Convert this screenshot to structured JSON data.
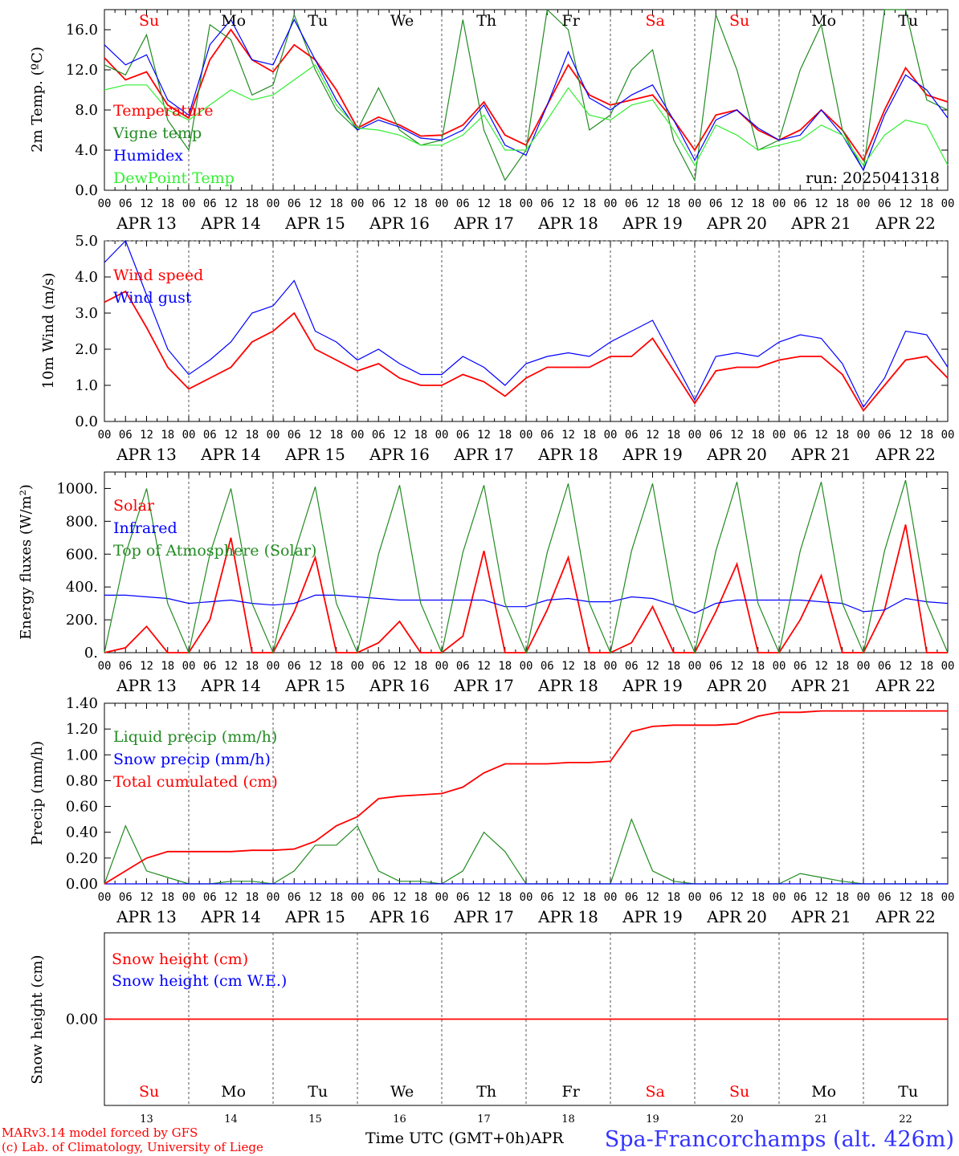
{
  "colors": {
    "red": "#ff0000",
    "green": "#228b22",
    "blue": "#0000ff",
    "lightgreen": "#33ee33",
    "axis": "#000000",
    "footer_blue": "#3333ff"
  },
  "days_top": [
    {
      "label": "Su",
      "color": "#ff0000"
    },
    {
      "label": "Mo",
      "color": "#000000"
    },
    {
      "label": "Tu",
      "color": "#000000"
    },
    {
      "label": "We",
      "color": "#000000"
    },
    {
      "label": "Th",
      "color": "#000000"
    },
    {
      "label": "Fr",
      "color": "#000000"
    },
    {
      "label": "Sa",
      "color": "#ff0000"
    },
    {
      "label": "Su",
      "color": "#ff0000"
    },
    {
      "label": "Mo",
      "color": "#000000"
    },
    {
      "label": "Tu",
      "color": "#000000"
    }
  ],
  "hour_ticks": [
    "00",
    "06",
    "12",
    "18"
  ],
  "hour_end": "00",
  "date_labels": [
    "APR 13",
    "APR 14",
    "APR 15",
    "APR 16",
    "APR 17",
    "APR 18",
    "APR 19",
    "APR 20",
    "APR 21",
    "APR 22"
  ],
  "bottom_day_numbers": [
    "13",
    "14",
    "15",
    "16",
    "17",
    "18",
    "19",
    "20",
    "21",
    "22"
  ],
  "run_label": "run: 2025041318",
  "x_title": "Time UTC (GMT+0h)APR",
  "footer_left_1": "MARv3.14 model forced by GFS",
  "footer_left_2": "(c) Lab. of Climatology, University of Liege",
  "station": "Spa-Francorchamps (alt. 426m)",
  "chart_data": [
    {
      "type": "line",
      "ylabel": "2m Temp. (ºC)",
      "ylim": [
        0,
        18
      ],
      "yticks": [
        "0.0",
        "4.0",
        "8.0",
        "12.0",
        "16.0"
      ],
      "ytick_values": [
        0,
        4,
        8,
        12,
        16
      ],
      "legend_placement": "left",
      "x_days": [
        0,
        0.25,
        0.5,
        0.75,
        1,
        1.25,
        1.5,
        1.75,
        2,
        2.25,
        2.5,
        2.75,
        3,
        3.25,
        3.5,
        3.75,
        4,
        4.25,
        4.5,
        4.75,
        5,
        5.25,
        5.5,
        5.75,
        6,
        6.25,
        6.5,
        6.75,
        7,
        7.25,
        7.5,
        7.75,
        8,
        8.25,
        8.5,
        8.75,
        9,
        9.25,
        9.5,
        9.75,
        10
      ],
      "series": [
        {
          "name": "Temperature",
          "color": "#ff0000",
          "values": [
            13.2,
            11.0,
            11.8,
            8.5,
            7.2,
            13.0,
            16.0,
            13.0,
            11.8,
            14.5,
            13.0,
            10.0,
            6.2,
            7.3,
            6.5,
            5.4,
            5.5,
            6.5,
            8.8,
            5.5,
            4.5,
            8.5,
            12.5,
            9.5,
            8.5,
            9.0,
            9.5,
            7.0,
            4.0,
            7.5,
            8.0,
            6.0,
            5.0,
            6.0,
            8.0,
            6.0,
            3.0,
            8.0,
            12.2,
            9.5,
            8.8
          ]
        },
        {
          "name": "Vigne temp",
          "color": "#228b22",
          "values": [
            12.5,
            11.5,
            15.5,
            7.0,
            4.0,
            16.5,
            15.0,
            9.5,
            10.5,
            17.5,
            12.0,
            8.0,
            6.0,
            10.2,
            6.0,
            4.5,
            5.0,
            17.0,
            6.0,
            1.0,
            4.0,
            18.0,
            16.0,
            6.0,
            7.5,
            12.0,
            14.0,
            5.0,
            1.0,
            17.5,
            12.0,
            4.0,
            5.0,
            12.0,
            16.5,
            6.0,
            2.0,
            18.0,
            18.0,
            9.0,
            8.0
          ]
        },
        {
          "name": "Humidex",
          "color": "#0000ff",
          "values": [
            14.5,
            12.5,
            13.5,
            9.0,
            7.5,
            14.5,
            17.0,
            13.0,
            12.5,
            17.0,
            13.0,
            9.0,
            6.0,
            7.0,
            6.3,
            5.2,
            5.0,
            6.0,
            8.5,
            4.5,
            3.5,
            8.5,
            13.8,
            9.2,
            8.0,
            9.5,
            10.5,
            7.0,
            3.0,
            7.0,
            8.0,
            6.2,
            5.0,
            5.5,
            8.0,
            5.5,
            2.0,
            7.5,
            11.5,
            10.0,
            7.2
          ]
        },
        {
          "name": "DewPoint Temp",
          "color": "#33ee33",
          "values": [
            10.0,
            10.5,
            10.5,
            8.0,
            7.0,
            8.5,
            10.0,
            9.0,
            9.5,
            11.0,
            12.5,
            8.5,
            6.2,
            6.0,
            5.5,
            4.5,
            4.5,
            5.5,
            7.5,
            4.0,
            4.0,
            7.0,
            10.2,
            7.5,
            7.0,
            8.5,
            9.0,
            6.0,
            2.5,
            6.5,
            5.5,
            4.0,
            4.5,
            5.0,
            6.5,
            5.5,
            2.5,
            5.5,
            7.0,
            6.5,
            2.5
          ]
        }
      ]
    },
    {
      "type": "line",
      "ylabel": "10m Wind (m/s)",
      "ylim": [
        0,
        5.0
      ],
      "yticks": [
        "0.0",
        "1.0",
        "2.0",
        "3.0",
        "4.0",
        "5.0"
      ],
      "ytick_values": [
        0,
        1,
        2,
        3,
        4,
        5
      ],
      "reference_line": 5.0,
      "legend_placement": "left",
      "x_days": [
        0,
        0.25,
        0.5,
        0.75,
        1,
        1.25,
        1.5,
        1.75,
        2,
        2.25,
        2.5,
        2.75,
        3,
        3.25,
        3.5,
        3.75,
        4,
        4.25,
        4.5,
        4.75,
        5,
        5.25,
        5.5,
        5.75,
        6,
        6.25,
        6.5,
        6.75,
        7,
        7.25,
        7.5,
        7.75,
        8,
        8.25,
        8.5,
        8.75,
        9,
        9.25,
        9.5,
        9.75,
        10
      ],
      "series": [
        {
          "name": "Wind speed",
          "color": "#ff0000",
          "values": [
            3.3,
            3.6,
            2.6,
            1.5,
            0.9,
            1.2,
            1.5,
            2.2,
            2.5,
            3.0,
            2.0,
            1.7,
            1.4,
            1.6,
            1.2,
            1.0,
            1.0,
            1.3,
            1.1,
            0.7,
            1.2,
            1.5,
            1.5,
            1.5,
            1.8,
            1.8,
            2.3,
            1.4,
            0.5,
            1.4,
            1.5,
            1.5,
            1.7,
            1.8,
            1.8,
            1.3,
            0.3,
            1.0,
            1.7,
            1.8,
            1.2
          ]
        },
        {
          "name": "Wind gust",
          "color": "#0000ff",
          "values": [
            4.4,
            5.0,
            3.5,
            2.0,
            1.3,
            1.7,
            2.2,
            3.0,
            3.2,
            3.9,
            2.5,
            2.2,
            1.7,
            2.0,
            1.6,
            1.3,
            1.3,
            1.8,
            1.5,
            1.0,
            1.6,
            1.8,
            1.9,
            1.8,
            2.2,
            2.5,
            2.8,
            1.7,
            0.6,
            1.8,
            1.9,
            1.8,
            2.2,
            2.4,
            2.3,
            1.6,
            0.4,
            1.2,
            2.5,
            2.4,
            1.5
          ]
        }
      ]
    },
    {
      "type": "line",
      "ylabel": "Energy fluxes (W/m²)",
      "ylim": [
        0,
        1100
      ],
      "yticks": [
        "0.",
        "200.",
        "400.",
        "600.",
        "800.",
        "1000."
      ],
      "ytick_values": [
        0,
        200,
        400,
        600,
        800,
        1000
      ],
      "legend_placement": "left",
      "x_days": [
        0,
        0.25,
        0.5,
        0.75,
        1,
        1.25,
        1.5,
        1.75,
        2,
        2.25,
        2.5,
        2.75,
        3,
        3.25,
        3.5,
        3.75,
        4,
        4.25,
        4.5,
        4.75,
        5,
        5.25,
        5.5,
        5.75,
        6,
        6.25,
        6.5,
        6.75,
        7,
        7.25,
        7.5,
        7.75,
        8,
        8.25,
        8.5,
        8.75,
        9,
        9.25,
        9.5,
        9.75,
        10
      ],
      "series": [
        {
          "name": "Solar",
          "color": "#ff0000",
          "values": [
            0,
            30,
            160,
            0,
            0,
            200,
            700,
            0,
            0,
            250,
            580,
            0,
            0,
            60,
            190,
            0,
            0,
            100,
            620,
            0,
            0,
            260,
            580,
            0,
            0,
            60,
            280,
            0,
            0,
            250,
            540,
            0,
            0,
            200,
            470,
            0,
            0,
            260,
            780,
            0,
            0
          ]
        },
        {
          "name": "Infrared",
          "color": "#0000ff",
          "values": [
            350,
            350,
            340,
            330,
            300,
            310,
            320,
            300,
            290,
            300,
            350,
            350,
            340,
            330,
            320,
            320,
            320,
            320,
            320,
            280,
            280,
            320,
            330,
            310,
            310,
            340,
            330,
            290,
            240,
            300,
            320,
            320,
            320,
            320,
            310,
            300,
            250,
            260,
            330,
            310,
            300
          ]
        },
        {
          "name": "Top of Atmosphere (Solar)",
          "color": "#228b22",
          "values": [
            0,
            600,
            1000,
            300,
            0,
            600,
            1000,
            300,
            0,
            600,
            1010,
            300,
            0,
            600,
            1020,
            300,
            0,
            610,
            1020,
            300,
            0,
            610,
            1030,
            300,
            0,
            620,
            1030,
            300,
            0,
            620,
            1040,
            300,
            0,
            620,
            1040,
            300,
            0,
            620,
            1050,
            300,
            0
          ]
        }
      ]
    },
    {
      "type": "line",
      "ylabel": "Precip (mm/h)",
      "ylim": [
        0,
        1.4
      ],
      "yticks": [
        "0.00",
        "0.20",
        "0.40",
        "0.60",
        "0.80",
        "1.00",
        "1.20",
        "1.40"
      ],
      "ytick_values": [
        0,
        0.2,
        0.4,
        0.6,
        0.8,
        1.0,
        1.2,
        1.4
      ],
      "legend_placement": "left",
      "x_days": [
        0,
        0.25,
        0.5,
        0.75,
        1,
        1.25,
        1.5,
        1.75,
        2,
        2.25,
        2.5,
        2.75,
        3,
        3.25,
        3.5,
        3.75,
        4,
        4.25,
        4.5,
        4.75,
        5,
        5.25,
        5.5,
        5.75,
        6,
        6.25,
        6.5,
        6.75,
        7,
        7.25,
        7.5,
        7.75,
        8,
        8.25,
        8.5,
        8.75,
        9,
        9.25,
        9.5,
        9.75,
        10
      ],
      "series": [
        {
          "name": "Liquid precip (mm/h)",
          "color": "#228b22",
          "values": [
            0.0,
            0.45,
            0.1,
            0.05,
            0.0,
            0.0,
            0.02,
            0.02,
            0.0,
            0.1,
            0.3,
            0.3,
            0.45,
            0.1,
            0.02,
            0.02,
            0.0,
            0.1,
            0.4,
            0.25,
            0.0,
            0.0,
            0.0,
            0.0,
            0.0,
            0.5,
            0.1,
            0.02,
            0.0,
            0.0,
            0.0,
            0.0,
            0.0,
            0.08,
            0.05,
            0.02,
            0.0,
            0.0,
            0.0,
            0.0,
            0.0
          ]
        },
        {
          "name": "Snow precip (mm/h)",
          "color": "#0000ff",
          "values": [
            0,
            0,
            0,
            0,
            0,
            0,
            0,
            0,
            0,
            0,
            0,
            0,
            0,
            0,
            0,
            0,
            0,
            0,
            0,
            0,
            0,
            0,
            0,
            0,
            0,
            0,
            0,
            0,
            0,
            0,
            0,
            0,
            0,
            0,
            0,
            0,
            0,
            0,
            0,
            0,
            0
          ]
        },
        {
          "name": "Total cumulated (cm)",
          "color": "#ff0000",
          "values": [
            0.0,
            0.1,
            0.2,
            0.25,
            0.25,
            0.25,
            0.25,
            0.26,
            0.26,
            0.27,
            0.33,
            0.45,
            0.52,
            0.66,
            0.68,
            0.69,
            0.7,
            0.75,
            0.86,
            0.93,
            0.93,
            0.93,
            0.94,
            0.94,
            0.95,
            1.18,
            1.22,
            1.23,
            1.23,
            1.23,
            1.24,
            1.3,
            1.33,
            1.33,
            1.34,
            1.34,
            1.34,
            1.34,
            1.34,
            1.34,
            1.34
          ]
        }
      ]
    },
    {
      "type": "line",
      "ylabel": "Snow height (cm)",
      "ylim": [
        -1,
        1
      ],
      "yticks": [
        "0.00"
      ],
      "ytick_values": [
        0
      ],
      "legend_placement": "left",
      "x_days": [
        0,
        10
      ],
      "series": [
        {
          "name": "Snow height (cm)",
          "color": "#ff0000",
          "values": [
            0,
            0
          ]
        },
        {
          "name": "Snow height (cm W.E.)",
          "color": "#0000ff",
          "values": []
        }
      ]
    }
  ]
}
